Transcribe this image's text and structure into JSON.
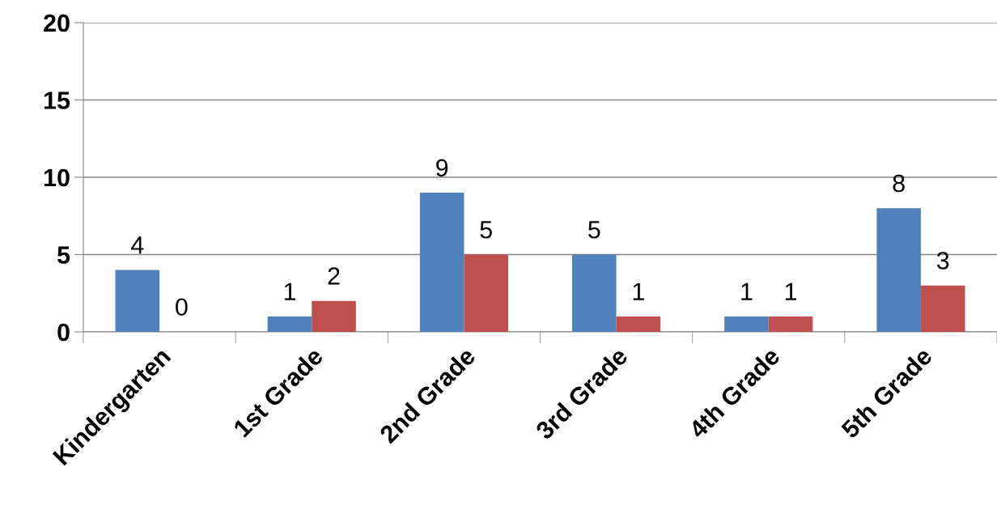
{
  "chart_data": {
    "type": "bar",
    "categories": [
      "Kindergarten",
      "1st Grade",
      "2nd Grade",
      "3rd Grade",
      "4th Grade",
      "5th Grade"
    ],
    "series": [
      {
        "color": "#4f81bd",
        "values": [
          4,
          1,
          9,
          5,
          1,
          8
        ]
      },
      {
        "color": "#c0504d",
        "values": [
          0,
          2,
          5,
          1,
          1,
          3
        ]
      }
    ],
    "ylim": [
      0,
      20
    ],
    "yticks": [
      0,
      5,
      10,
      15,
      20
    ],
    "grid": "y",
    "data_labels": true,
    "legend": false
  }
}
